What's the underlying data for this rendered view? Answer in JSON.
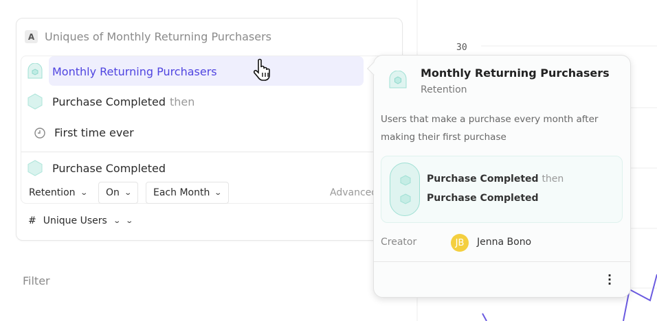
{
  "chart": {
    "y_tick": "30",
    "line_color": "#6a5ae0"
  },
  "metric": {
    "letter": "A",
    "title": "Uniques of Monthly Returning Purchasers"
  },
  "selected": {
    "label": "Monthly Returning Purchasers"
  },
  "steps": [
    {
      "label": "Purchase Completed",
      "suffix": "then"
    },
    {
      "label": "First time ever"
    },
    {
      "label": "Purchase Completed"
    }
  ],
  "controls": {
    "retention": "Retention",
    "on": "On",
    "each_month": "Each Month",
    "advanced": "Advanced"
  },
  "measure": {
    "hash": "#",
    "label": "Unique Users"
  },
  "filter_label": "Filter",
  "popover": {
    "title": "Monthly Returning Purchasers",
    "subtitle": "Retention",
    "description": "Users that make a purchase every month after making their first purchase",
    "step1": "Purchase Completed",
    "step1_suffix": "then",
    "step2": "Purchase Completed",
    "creator_label": "Creator",
    "creator_initials": "JB",
    "creator_name": "Jenna Bono",
    "avatar_color": "#f4cf3f"
  },
  "accent": "#4f44e0"
}
